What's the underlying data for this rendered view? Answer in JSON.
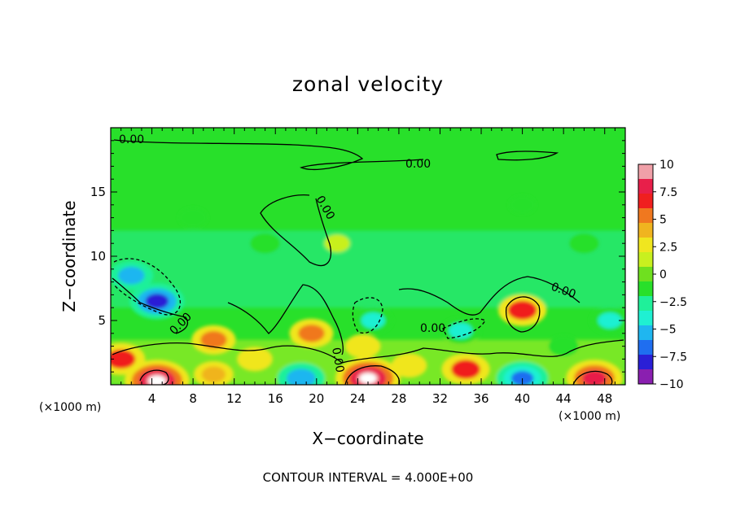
{
  "chart_data": {
    "type": "heatmap",
    "title": "zonal velocity",
    "xlabel": "X−coordinate",
    "ylabel": "Z−coordinate",
    "x_unit": "(×1000 m)",
    "y_unit": "(×1000 m)",
    "xlim": [
      0,
      50
    ],
    "ylim": [
      0,
      20
    ],
    "x_ticks": [
      4,
      8,
      12,
      16,
      20,
      24,
      28,
      32,
      36,
      40,
      44,
      48
    ],
    "x_tick_labels": [
      "4",
      "8",
      "12",
      "16",
      "20",
      "24",
      "28",
      "32",
      "36",
      "40",
      "44",
      "48"
    ],
    "y_ticks": [
      5,
      10,
      15
    ],
    "y_tick_labels": [
      "5",
      "10",
      "15"
    ],
    "colorbar": {
      "min": -10,
      "max": 10,
      "ticks": [
        10,
        7.5,
        5,
        2.5,
        0,
        -2.5,
        -5,
        -7.5,
        -10
      ],
      "tick_labels": [
        "10",
        "7.5",
        "5",
        "2.5",
        "0",
        "−2.5",
        "−5",
        "−7.5",
        "−10"
      ],
      "colors": [
        "#8a1fb0",
        "#2a1fd6",
        "#1f6ef0",
        "#1fb6f0",
        "#1ff0d2",
        "#1ff09a",
        "#28e02a",
        "#6fe01f",
        "#c8f01f",
        "#f0e61f",
        "#f0b41f",
        "#f0781f",
        "#f01f1f",
        "#e81f4a",
        "#f0a0a8"
      ]
    },
    "contour_interval": "CONTOUR INTERVAL = 4.000E+00",
    "contour_labels": [
      "0.00",
      "0.00",
      "0.00",
      "0.00",
      "0.00",
      "0.00",
      "0.00"
    ],
    "features": [
      {
        "x": 4.5,
        "z": 6.5,
        "value": -7.5
      },
      {
        "x": 2.0,
        "z": 8.5,
        "value": -5
      },
      {
        "x": 4.5,
        "z": 0.3,
        "value": 10
      },
      {
        "x": 1.0,
        "z": 2.0,
        "value": 6
      },
      {
        "x": 10.0,
        "z": 3.5,
        "value": 5
      },
      {
        "x": 19.5,
        "z": 4.0,
        "value": 5
      },
      {
        "x": 18.5,
        "z": 0.5,
        "value": -6
      },
      {
        "x": 25.0,
        "z": 0.5,
        "value": 10
      },
      {
        "x": 24.5,
        "z": 3.0,
        "value": 3
      },
      {
        "x": 25.5,
        "z": 5.0,
        "value": -4
      },
      {
        "x": 34.0,
        "z": 4.2,
        "value": -4
      },
      {
        "x": 34.5,
        "z": 1.2,
        "value": 6
      },
      {
        "x": 40.0,
        "z": 5.8,
        "value": 6
      },
      {
        "x": 40.0,
        "z": 0.5,
        "value": -7
      },
      {
        "x": 47.0,
        "z": 0.5,
        "value": 8
      },
      {
        "x": 48.5,
        "z": 5.0,
        "value": -4
      },
      {
        "x": 10.0,
        "z": 0.8,
        "value": 4
      },
      {
        "x": 14.0,
        "z": 2.0,
        "value": 3
      },
      {
        "x": 29.0,
        "z": 1.5,
        "value": 3
      },
      {
        "x": 44.0,
        "z": 3.0,
        "value": -2
      },
      {
        "x": 15.0,
        "z": 11.0,
        "value": -2
      },
      {
        "x": 46.0,
        "z": 11.0,
        "value": -2
      },
      {
        "x": 8.0,
        "z": 13.0,
        "value": -1.5
      },
      {
        "x": 40.0,
        "z": 14.0,
        "value": -1
      },
      {
        "x": 22.0,
        "z": 11.0,
        "value": 0.8
      }
    ]
  }
}
